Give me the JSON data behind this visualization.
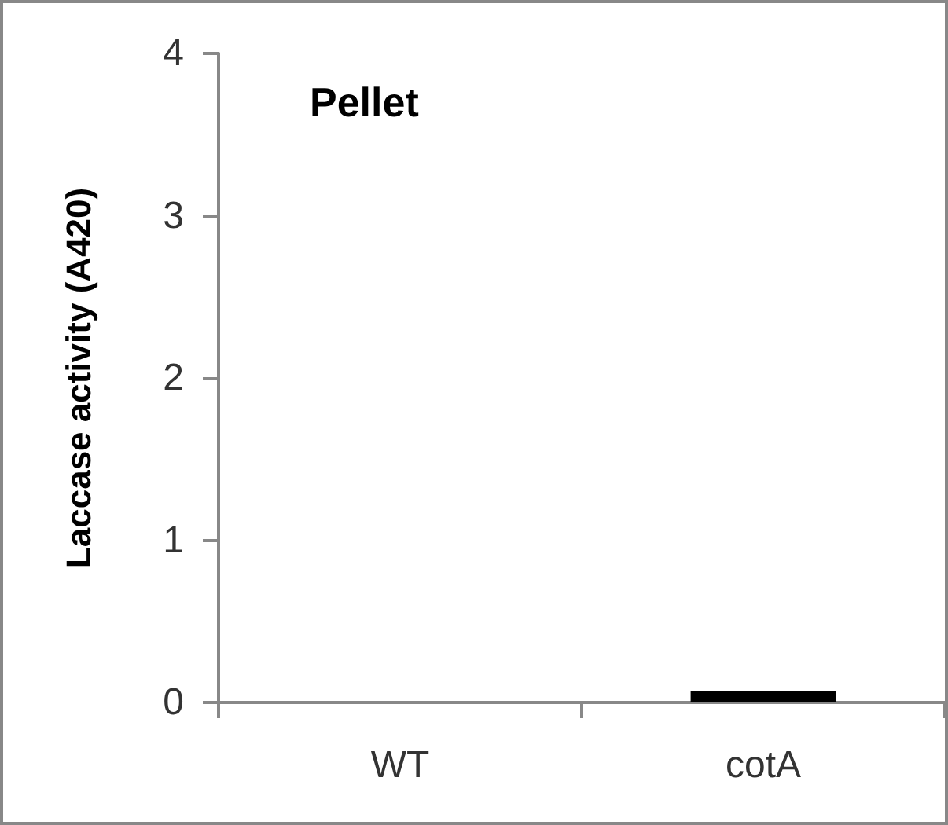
{
  "chart_data": {
    "type": "bar",
    "title": "Pellet",
    "ylabel": "Laccase activity (A420)",
    "categories": [
      "WT",
      "cotA"
    ],
    "values": [
      0,
      0.07
    ],
    "color": "#000000",
    "ylim": [
      0,
      4
    ],
    "yticks": [
      0,
      1,
      2,
      3,
      4
    ],
    "grid": false
  }
}
